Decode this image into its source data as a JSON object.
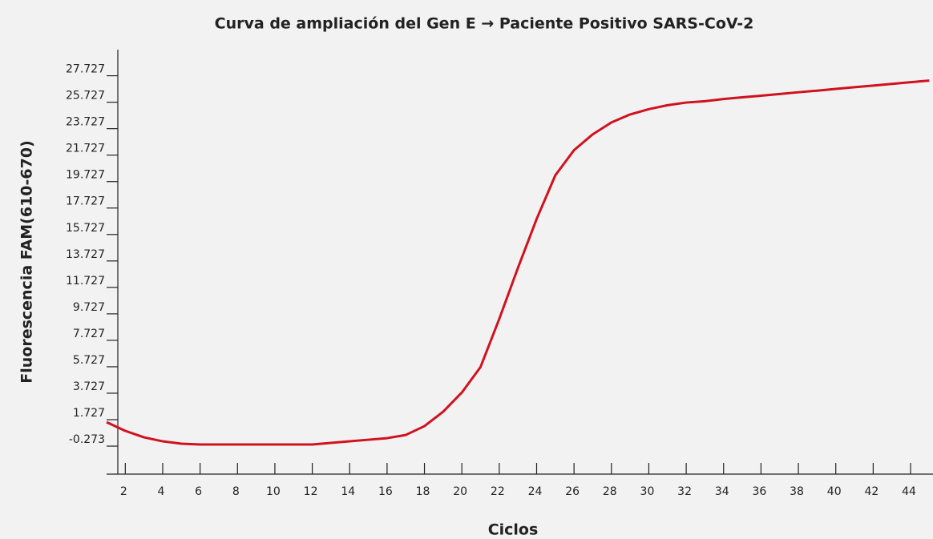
{
  "chart_data": {
    "type": "line",
    "title": "Curva de ampliación del Gen E → Paciente Positivo SARS-CoV-2",
    "x_label": "Ciclos",
    "y_label": "Fluorescencia FAM(610-670)",
    "x": [
      1,
      2,
      3,
      4,
      5,
      6,
      7,
      8,
      9,
      10,
      11,
      12,
      13,
      14,
      15,
      16,
      17,
      18,
      19,
      20,
      21,
      22,
      23,
      24,
      25,
      26,
      27,
      28,
      29,
      30,
      31,
      32,
      33,
      34,
      35,
      36,
      37,
      38,
      39,
      40,
      41,
      42,
      43,
      44,
      45
    ],
    "series": [
      {
        "name": "Gen E",
        "color": "#d0121f",
        "values": [
          1.54,
          0.88,
          0.39,
          0.09,
          -0.09,
          -0.15,
          -0.15,
          -0.15,
          -0.15,
          -0.15,
          -0.15,
          -0.15,
          -0.03,
          0.09,
          0.21,
          0.33,
          0.57,
          1.24,
          2.33,
          3.78,
          5.71,
          9.34,
          13.2,
          16.9,
          20.2,
          22.1,
          23.3,
          24.2,
          24.8,
          25.2,
          25.5,
          25.7,
          25.8,
          25.97,
          26.1,
          26.22,
          26.35,
          26.48,
          26.6,
          26.73,
          26.86,
          26.98,
          27.11,
          27.24,
          27.36
        ]
      }
    ],
    "xlim": [
      1,
      45.2
    ],
    "ylim": [
      -2.39,
      29.7
    ],
    "xticks": [
      2,
      4,
      6,
      8,
      10,
      12,
      14,
      16,
      18,
      20,
      22,
      24,
      26,
      28,
      30,
      32,
      34,
      36,
      38,
      40,
      42,
      44
    ],
    "yticks": [
      -0.273,
      1.727,
      3.727,
      5.727,
      7.727,
      9.727,
      11.727,
      13.727,
      15.727,
      17.727,
      19.727,
      21.727,
      23.727,
      25.727,
      27.727
    ]
  }
}
